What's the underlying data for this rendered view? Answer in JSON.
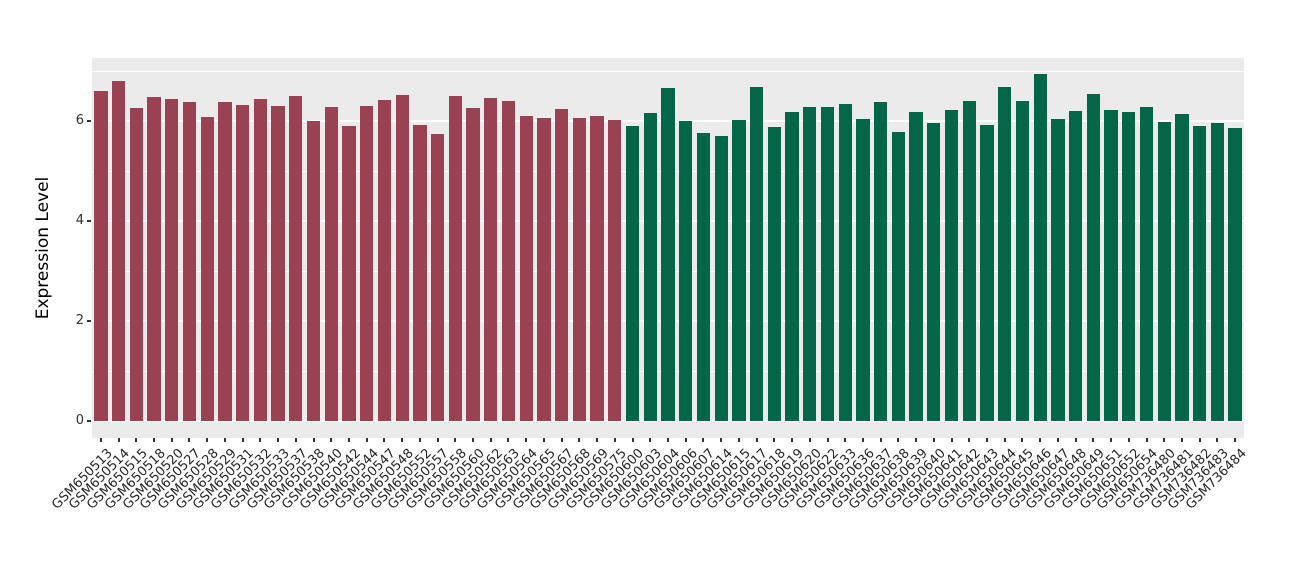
{
  "chart_data": {
    "type": "bar",
    "title": "",
    "xlabel": "",
    "ylabel": "Expression Level",
    "ylim": [
      0,
      7.27
    ],
    "yticks": [
      0,
      2,
      4,
      6
    ],
    "minor_yticks": [
      1,
      3,
      5,
      7
    ],
    "grid": true,
    "legend_position": "none",
    "colors": {
      "panel_bg": "#EBEBEB",
      "grid": "#FFFFFF",
      "tick": "#333333",
      "group_red": "#9A4252",
      "group_green": "#046648"
    },
    "bars": [
      {
        "label": "GSM650513",
        "value": 6.6,
        "group": "red"
      },
      {
        "label": "GSM650514",
        "value": 6.8,
        "group": "red"
      },
      {
        "label": "GSM650515",
        "value": 6.26,
        "group": "red"
      },
      {
        "label": "GSM650518",
        "value": 6.49,
        "group": "red"
      },
      {
        "label": "GSM650520",
        "value": 6.44,
        "group": "red"
      },
      {
        "label": "GSM650527",
        "value": 6.39,
        "group": "red"
      },
      {
        "label": "GSM650528",
        "value": 6.09,
        "group": "red"
      },
      {
        "label": "GSM650529",
        "value": 6.38,
        "group": "red"
      },
      {
        "label": "GSM650531",
        "value": 6.33,
        "group": "red"
      },
      {
        "label": "GSM650532",
        "value": 6.45,
        "group": "red"
      },
      {
        "label": "GSM650533",
        "value": 6.3,
        "group": "red"
      },
      {
        "label": "GSM650537",
        "value": 6.51,
        "group": "red"
      },
      {
        "label": "GSM650538",
        "value": 6.0,
        "group": "red"
      },
      {
        "label": "GSM650540",
        "value": 6.28,
        "group": "red"
      },
      {
        "label": "GSM650542",
        "value": 5.91,
        "group": "red"
      },
      {
        "label": "GSM650544",
        "value": 6.31,
        "group": "red"
      },
      {
        "label": "GSM650547",
        "value": 6.43,
        "group": "red"
      },
      {
        "label": "GSM650548",
        "value": 6.52,
        "group": "red"
      },
      {
        "label": "GSM650552",
        "value": 5.93,
        "group": "red"
      },
      {
        "label": "GSM650557",
        "value": 5.75,
        "group": "red"
      },
      {
        "label": "GSM650558",
        "value": 6.51,
        "group": "red"
      },
      {
        "label": "GSM650560",
        "value": 6.26,
        "group": "red"
      },
      {
        "label": "GSM650562",
        "value": 6.47,
        "group": "red"
      },
      {
        "label": "GSM650563",
        "value": 6.41,
        "group": "red"
      },
      {
        "label": "GSM650564",
        "value": 6.1,
        "group": "red"
      },
      {
        "label": "GSM650565",
        "value": 6.06,
        "group": "red"
      },
      {
        "label": "GSM650567",
        "value": 6.25,
        "group": "red"
      },
      {
        "label": "GSM650568",
        "value": 6.06,
        "group": "red"
      },
      {
        "label": "GSM650569",
        "value": 6.1,
        "group": "red"
      },
      {
        "label": "GSM650575",
        "value": 6.03,
        "group": "red"
      },
      {
        "label": "GSM650600",
        "value": 5.9,
        "group": "green"
      },
      {
        "label": "GSM650603",
        "value": 6.17,
        "group": "green"
      },
      {
        "label": "GSM650604",
        "value": 6.66,
        "group": "green"
      },
      {
        "label": "GSM650606",
        "value": 6.01,
        "group": "green"
      },
      {
        "label": "GSM650607",
        "value": 5.77,
        "group": "green"
      },
      {
        "label": "GSM650614",
        "value": 5.71,
        "group": "green"
      },
      {
        "label": "GSM650615",
        "value": 6.03,
        "group": "green"
      },
      {
        "label": "GSM650617",
        "value": 6.69,
        "group": "green"
      },
      {
        "label": "GSM650618",
        "value": 5.88,
        "group": "green"
      },
      {
        "label": "GSM650619",
        "value": 6.19,
        "group": "green"
      },
      {
        "label": "GSM650620",
        "value": 6.28,
        "group": "green"
      },
      {
        "label": "GSM650622",
        "value": 6.29,
        "group": "green"
      },
      {
        "label": "GSM650633",
        "value": 6.34,
        "group": "green"
      },
      {
        "label": "GSM650636",
        "value": 6.05,
        "group": "green"
      },
      {
        "label": "GSM650637",
        "value": 6.39,
        "group": "green"
      },
      {
        "label": "GSM650638",
        "value": 5.79,
        "group": "green"
      },
      {
        "label": "GSM650639",
        "value": 6.19,
        "group": "green"
      },
      {
        "label": "GSM650640",
        "value": 5.97,
        "group": "green"
      },
      {
        "label": "GSM650641",
        "value": 6.22,
        "group": "green"
      },
      {
        "label": "GSM650642",
        "value": 6.41,
        "group": "green"
      },
      {
        "label": "GSM650643",
        "value": 5.93,
        "group": "green"
      },
      {
        "label": "GSM650644",
        "value": 6.68,
        "group": "green"
      },
      {
        "label": "GSM650645",
        "value": 6.41,
        "group": "green"
      },
      {
        "label": "GSM650646",
        "value": 6.95,
        "group": "green"
      },
      {
        "label": "GSM650647",
        "value": 6.04,
        "group": "green"
      },
      {
        "label": "GSM650648",
        "value": 6.2,
        "group": "green"
      },
      {
        "label": "GSM650649",
        "value": 6.55,
        "group": "green"
      },
      {
        "label": "GSM650651",
        "value": 6.23,
        "group": "green"
      },
      {
        "label": "GSM650652",
        "value": 6.18,
        "group": "green"
      },
      {
        "label": "GSM650654",
        "value": 6.28,
        "group": "green"
      },
      {
        "label": "GSM736480",
        "value": 5.99,
        "group": "green"
      },
      {
        "label": "GSM736481",
        "value": 6.14,
        "group": "green"
      },
      {
        "label": "GSM736482",
        "value": 5.9,
        "group": "green"
      },
      {
        "label": "GSM736483",
        "value": 5.97,
        "group": "green"
      },
      {
        "label": "GSM736484",
        "value": 5.86,
        "group": "green"
      }
    ]
  }
}
